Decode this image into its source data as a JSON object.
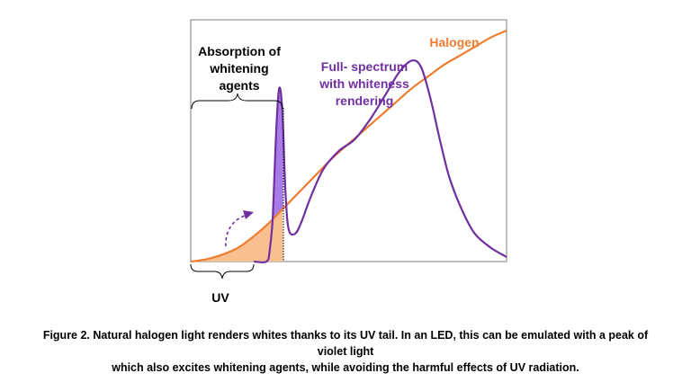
{
  "chart_data": {
    "type": "line",
    "title": "",
    "xlabel": "",
    "ylabel": "",
    "grid": false,
    "colors": {
      "halogen": "#ED7D31",
      "full_spectrum": "#7030A0",
      "violet_fill": "#A77BE8",
      "uv_fill": "#F9C08F"
    },
    "series": [
      {
        "name": "Halogen",
        "x": [
          0,
          0.05,
          0.1,
          0.15,
          0.2,
          0.25,
          0.3,
          0.35,
          0.4,
          0.45,
          0.5,
          0.55,
          0.6,
          0.65,
          0.7,
          0.75,
          0.8,
          0.85,
          0.9,
          0.95,
          1.0
        ],
        "y": [
          0.0,
          0.01,
          0.03,
          0.06,
          0.11,
          0.17,
          0.24,
          0.31,
          0.38,
          0.45,
          0.51,
          0.57,
          0.63,
          0.69,
          0.75,
          0.8,
          0.85,
          0.89,
          0.93,
          0.97,
          1.0
        ]
      },
      {
        "name": "Full- spectrum with whiteness rendering",
        "x": [
          0.2,
          0.24,
          0.25,
          0.26,
          0.27,
          0.28,
          0.29,
          0.3,
          0.31,
          0.33,
          0.35,
          0.38,
          0.42,
          0.47,
          0.52,
          0.57,
          0.62,
          0.66,
          0.7,
          0.73,
          0.76,
          0.79,
          0.82,
          0.86,
          0.9,
          0.95,
          1.0
        ],
        "y": [
          0.0,
          0.0,
          0.05,
          0.2,
          0.55,
          0.75,
          0.65,
          0.3,
          0.14,
          0.12,
          0.17,
          0.28,
          0.4,
          0.48,
          0.53,
          0.62,
          0.73,
          0.82,
          0.87,
          0.84,
          0.7,
          0.52,
          0.36,
          0.22,
          0.12,
          0.06,
          0.02
        ]
      }
    ],
    "annotations": {
      "absorption": "Absorption of whitening agents",
      "uv": "UV"
    }
  },
  "labels": {
    "halogen": "Halogen",
    "full_spectrum_lines": [
      "Full- spectrum",
      "with whiteness",
      "rendering"
    ],
    "absorption_lines": [
      "Absorption of",
      "whitening",
      "agents"
    ],
    "uv": "UV"
  },
  "caption_lines": [
    "Figure 2. Natural halogen light renders whites thanks to its UV tail. In an LED, this can be emulated with a peak of violet light",
    "which also excites whitening agents, while avoiding the harmful effects of UV radiation."
  ]
}
